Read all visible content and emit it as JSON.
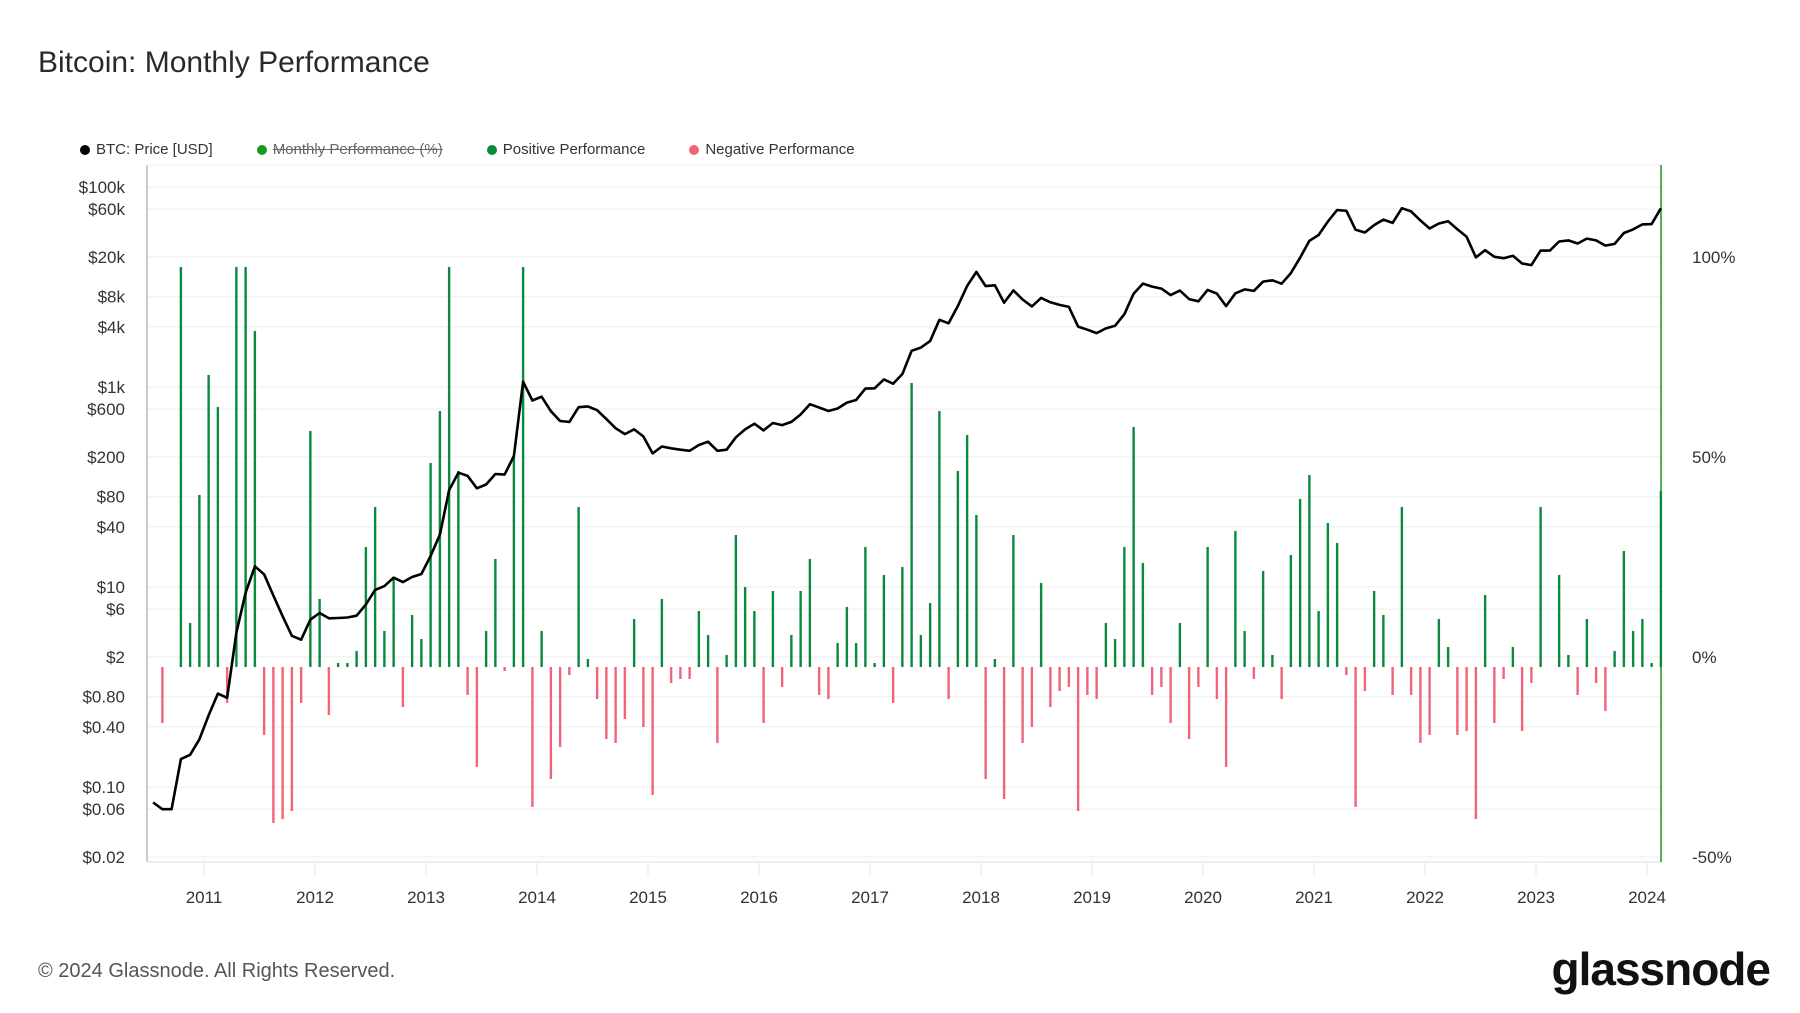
{
  "title": "Bitcoin: Monthly Performance",
  "legend": [
    {
      "label": "BTC: Price [USD]",
      "color": "#000000",
      "enabled": true
    },
    {
      "label": "Monthly Performance (%)",
      "color": "#1a9a1a",
      "enabled": false
    },
    {
      "label": "Positive Performance",
      "color": "#0b8a3e",
      "enabled": true
    },
    {
      "label": "Negative Performance",
      "color": "#f0657a",
      "enabled": true
    }
  ],
  "footer": "© 2024 Glassnode. All Rights Reserved.",
  "logo": "glassnode",
  "chart_data": {
    "type": "bar+line",
    "title": "Bitcoin: Monthly Performance",
    "x_start": "2010-07",
    "x_ticks": [
      "2011",
      "2012",
      "2013",
      "2014",
      "2015",
      "2016",
      "2017",
      "2018",
      "2019",
      "2020",
      "2021",
      "2022",
      "2023",
      "2024"
    ],
    "y_left": {
      "scale": "log",
      "range": [
        0.02,
        100000
      ],
      "ticks": [
        {
          "v": 100000,
          "l": "$100k"
        },
        {
          "v": 60000,
          "l": "$60k"
        },
        {
          "v": 20000,
          "l": "$20k"
        },
        {
          "v": 8000,
          "l": "$8k"
        },
        {
          "v": 4000,
          "l": "$4k"
        },
        {
          "v": 1000,
          "l": "$1k"
        },
        {
          "v": 600,
          "l": "$600"
        },
        {
          "v": 200,
          "l": "$200"
        },
        {
          "v": 80,
          "l": "$80"
        },
        {
          "v": 40,
          "l": "$40"
        },
        {
          "v": 10,
          "l": "$10"
        },
        {
          "v": 6,
          "l": "$6"
        },
        {
          "v": 2,
          "l": "$2"
        },
        {
          "v": 0.8,
          "l": "$0.80"
        },
        {
          "v": 0.4,
          "l": "$0.40"
        },
        {
          "v": 0.1,
          "l": "$0.10"
        },
        {
          "v": 0.06,
          "l": "$0.06"
        },
        {
          "v": 0.02,
          "l": "$0.02"
        }
      ]
    },
    "y_right": {
      "scale": "linear",
      "range": [
        -50,
        100
      ],
      "ticks": [
        {
          "v": 100,
          "l": "100%"
        },
        {
          "v": 50,
          "l": "50%"
        },
        {
          "v": 0,
          "l": "0%"
        },
        {
          "v": -50,
          "l": "-50%"
        }
      ]
    },
    "price": [
      0.07,
      0.06,
      0.06,
      0.19,
      0.21,
      0.3,
      0.52,
      0.86,
      0.78,
      3.5,
      8.74,
      16.1,
      13.4,
      8.2,
      5.1,
      3.25,
      2.97,
      4.72,
      5.5,
      4.86,
      4.9,
      4.95,
      5.17,
      6.7,
      9.35,
      10.2,
      12.4,
      11.2,
      12.6,
      13.5,
      20.4,
      33.4,
      93,
      139,
      129,
      97,
      106,
      135,
      133,
      204,
      1129,
      732,
      800,
      573,
      457,
      448,
      628,
      640,
      586,
      478,
      387,
      338,
      378,
      320,
      217,
      254,
      244,
      236,
      230,
      263,
      284,
      230,
      236,
      314,
      377,
      430,
      368,
      437,
      416,
      448,
      531,
      673,
      624,
      575,
      609,
      698,
      742,
      963,
      970,
      1190,
      1080,
      1348,
      2300,
      2480,
      2875,
      4703,
      4338,
      6468,
      10233,
      14156,
      10221,
      10397,
      6973,
      9240,
      7494,
      6404,
      7780,
      7037,
      6625,
      6318,
      4017,
      3742,
      3457,
      3854,
      4105,
      5350,
      8574,
      10817,
      10085,
      9630,
      8293,
      9199,
      7569,
      7193,
      9350,
      8599,
      6438,
      8658,
      9461,
      9137,
      11323,
      11680,
      10784,
      13781,
      19625,
      29001,
      33114,
      45137,
      58918,
      57750,
      37332,
      35041,
      41626,
      47166,
      43790,
      61318,
      57005,
      46306,
      38483,
      43193,
      45538,
      37714,
      31792,
      19785,
      23336,
      20050,
      19431,
      20495,
      17168,
      16548,
      23139,
      23147,
      28478,
      29268,
      27219,
      30477,
      29230,
      25931,
      26967,
      34667,
      37713,
      42265,
      42580,
      61198
    ],
    "performance": [
      null,
      -14,
      0,
      217,
      11,
      43,
      73,
      65,
      -9,
      349,
      150,
      84,
      -17,
      -39,
      -38,
      -36,
      -9,
      59,
      17,
      -12,
      1,
      1,
      4,
      30,
      40,
      9,
      22,
      -10,
      13,
      7,
      51,
      64,
      178,
      49,
      -7,
      -25,
      9,
      27,
      -1,
      53,
      453,
      -35,
      9,
      -28,
      -20,
      -2,
      40,
      2,
      -8,
      -18,
      -19,
      -13,
      12,
      -15,
      -32,
      17,
      -4,
      -3,
      -3,
      14,
      8,
      -19,
      3,
      33,
      20,
      14,
      -14,
      19,
      -5,
      8,
      19,
      27,
      -7,
      -8,
      6,
      15,
      6,
      30,
      1,
      23,
      -9,
      25,
      71,
      8,
      16,
      64,
      -8,
      49,
      58,
      38,
      -28,
      2,
      -33,
      33,
      -19,
      -15,
      21,
      -10,
      -6,
      -5,
      -36,
      -7,
      -8,
      11,
      7,
      30,
      60,
      26,
      -7,
      -5,
      -14,
      11,
      -18,
      -5,
      30,
      -8,
      -25,
      34,
      9,
      -3,
      24,
      3,
      -8,
      28,
      42,
      48,
      14,
      36,
      31,
      -2,
      -35,
      -6,
      19,
      13,
      -7,
      40,
      -7,
      -19,
      -17,
      12,
      5,
      -17,
      -16,
      -38,
      18,
      -14,
      -3,
      5,
      -16,
      -4,
      40,
      0,
      23,
      3,
      -7,
      12,
      -4,
      -11,
      4,
      29,
      9,
      12,
      1,
      44
    ]
  }
}
